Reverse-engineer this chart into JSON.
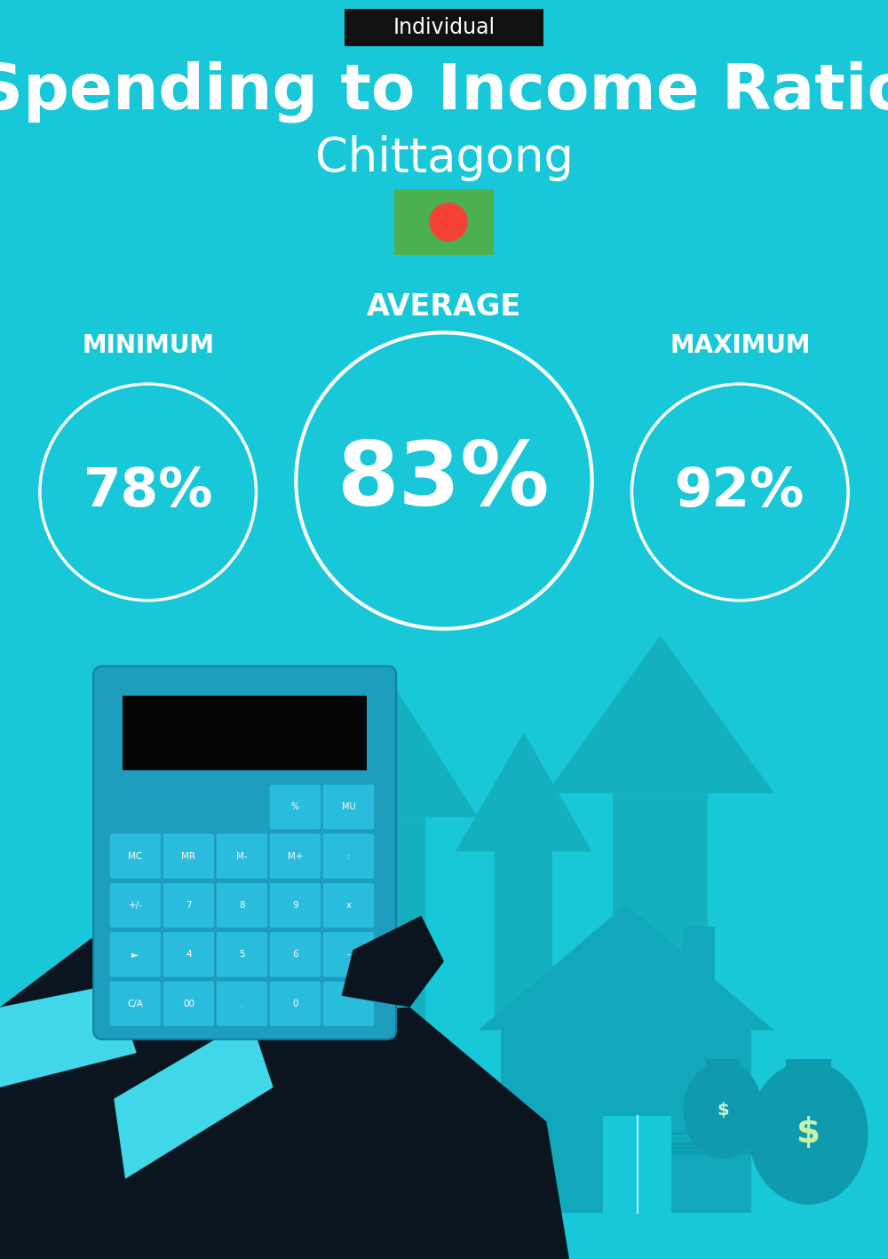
{
  "bg_color": "#19C8D8",
  "tag_text": "Individual",
  "tag_bg": "#111111",
  "tag_text_color": "#ffffff",
  "title_line1": "Spending to Income Ratio",
  "title_line2": "Chittagong",
  "title_color": "#ffffff",
  "avg_label": "AVERAGE",
  "min_label": "MINIMUM",
  "max_label": "MAXIMUM",
  "avg_value": "83%",
  "min_value": "78%",
  "max_value": "92%",
  "label_color": "#ffffff",
  "circle_edge_color": "#ffffff",
  "flag_green": "#4CAF50",
  "flag_red": "#F44336",
  "arrow_color": "#14B0C0",
  "house_color": "#12A8BC",
  "hand_color": "#0a1520",
  "calc_color": "#1E9EBF",
  "figsize": [
    10.0,
    14.17
  ],
  "dpi": 100
}
